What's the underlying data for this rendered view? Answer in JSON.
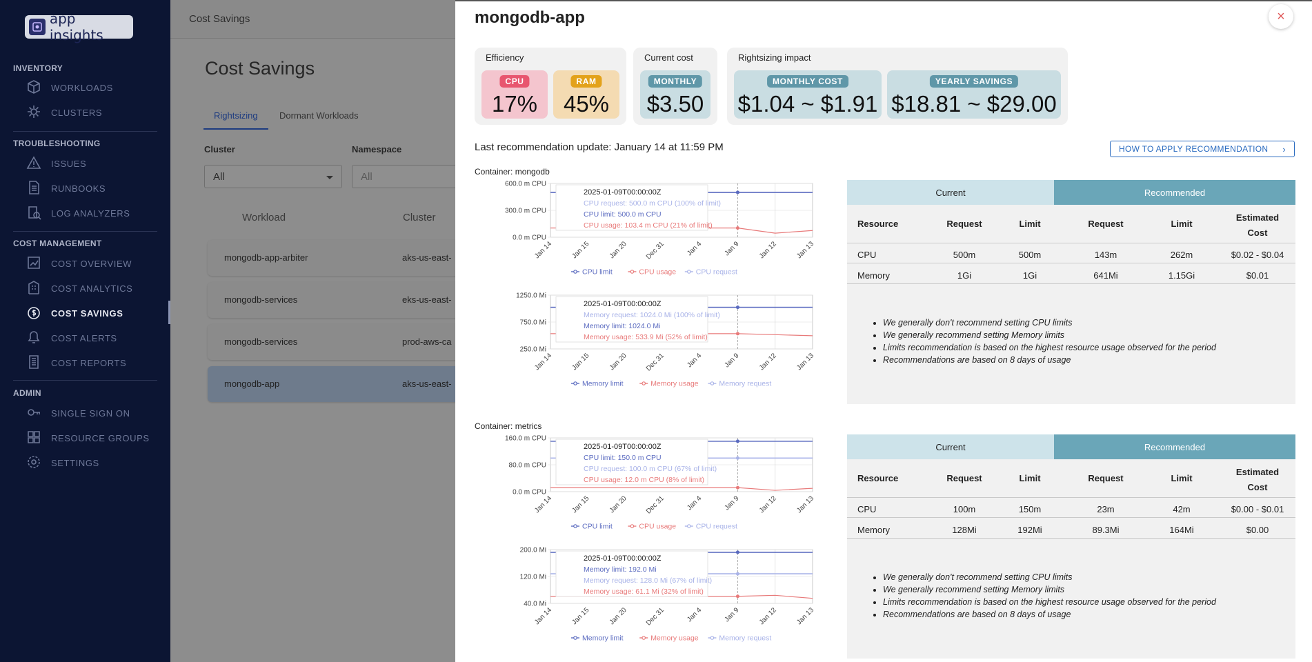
{
  "app": {
    "logo_text": "app insights"
  },
  "sidebar": {
    "sections": [
      {
        "label": "INVENTORY",
        "items": [
          {
            "label": "WORKLOADS",
            "icon": "cube-icon"
          },
          {
            "label": "CLUSTERS",
            "icon": "gear-icon"
          }
        ]
      },
      {
        "label": "TROUBLESHOOTING",
        "items": [
          {
            "label": "ISSUES",
            "icon": "warning-icon"
          },
          {
            "label": "RUNBOOKS",
            "icon": "document-icon"
          },
          {
            "label": "LOG ANALYZERS",
            "icon": "log-icon"
          }
        ]
      },
      {
        "label": "COST MANAGEMENT",
        "items": [
          {
            "label": "COST OVERVIEW",
            "icon": "chart-icon"
          },
          {
            "label": "COST ANALYTICS",
            "icon": "building-icon"
          },
          {
            "label": "COST SAVINGS",
            "icon": "coin-icon",
            "active": true
          },
          {
            "label": "COST ALERTS",
            "icon": "alert-icon"
          },
          {
            "label": "COST REPORTS",
            "icon": "report-icon"
          }
        ]
      },
      {
        "label": "ADMIN",
        "items": [
          {
            "label": "SINGLE SIGN ON",
            "icon": "key-icon"
          },
          {
            "label": "RESOURCE GROUPS",
            "icon": "grid-icon"
          },
          {
            "label": "SETTINGS",
            "icon": "settings-icon"
          }
        ]
      }
    ]
  },
  "main": {
    "topbar_title": "Cost Savings",
    "page_title": "Cost Savings",
    "tabs": [
      {
        "label": "Rightsizing"
      },
      {
        "label": "Dormant Workloads"
      }
    ],
    "filters": [
      {
        "label": "Cluster",
        "value": "All"
      },
      {
        "label": "Namespace",
        "value": "All"
      }
    ],
    "columns": [
      "Workload",
      "Cluster"
    ],
    "rows": [
      {
        "workload": "mongodb-app-arbiter",
        "cluster": "aks-us-east-"
      },
      {
        "workload": "mongodb-services",
        "cluster": "eks-us-east-"
      },
      {
        "workload": "mongodb-services",
        "cluster": "prod-aws-ca"
      },
      {
        "workload": "mongodb-app",
        "cluster": "aks-us-east-"
      }
    ]
  },
  "drawer": {
    "title": "mongodb-app",
    "close_label": "×",
    "efficiency": {
      "label": "Efficiency",
      "cpu_label": "CPU",
      "cpu_value": "17%",
      "ram_label": "RAM",
      "ram_value": "45%"
    },
    "current_cost": {
      "label": "Current cost",
      "badge": "MONTHLY",
      "value": "$3.50"
    },
    "rightsizing": {
      "label": "Rightsizing impact",
      "monthly_badge": "MONTHLY COST",
      "monthly_value": "$1.04 ~ $1.91",
      "yearly_badge": "YEARLY SAVINGS",
      "yearly_value": "$18.81 ~ $29.00"
    },
    "last_update": "Last recommendation update: January 14 at 11:59 PM",
    "howto_label": "HOW TO APPLY RECOMMENDATION",
    "colors": {
      "limit": "#5b6bc0",
      "usage": "#e87a7a",
      "request": "#a9b3e8",
      "cpu_card": "#f4c5ce",
      "cpu_badge": "#e8566f",
      "ram_card": "#f4dbb2",
      "ram_badge": "#e3a21a",
      "teal_card": "#c9dde2",
      "teal_badge": "#5f97a8"
    },
    "table_headers": {
      "current": "Current",
      "recommended": "Recommended",
      "resource": "Resource",
      "request": "Request",
      "limit": "Limit",
      "estimated": "Estimated",
      "cost": "Cost"
    },
    "containers": [
      {
        "label": "Container: mongodb",
        "rows": [
          {
            "resource": "CPU",
            "cur_request": "500m",
            "cur_limit": "500m",
            "rec_request": "143m",
            "rec_limit": "262m",
            "cost": "$0.02 - $0.04"
          },
          {
            "resource": "Memory",
            "cur_request": "1Gi",
            "cur_limit": "1Gi",
            "rec_request": "641Mi",
            "rec_limit": "1.15Gi",
            "cost": "$0.01"
          }
        ],
        "notes": [
          "We generally don't recommend setting CPU limits",
          "We generally recommend setting Memory limits",
          "Limits recommendation is based on the highest resource usage observed for the period",
          "Recommendations are based on 8 days of usage"
        ],
        "charts": [
          {
            "type": "line",
            "x": [
              "Jan 14",
              "Jan 15",
              "Jan 20",
              "Dec 31",
              "Jan 4",
              "Jan 9",
              "Jan 12",
              "Jan 13"
            ],
            "yticks": [
              "600.0 m CPU",
              "300.0 m CPU",
              "0.0 m CPU"
            ],
            "ylim": [
              0,
              600
            ],
            "series": [
              {
                "name": "CPU limit",
                "key": "limit",
                "values": [
                  500,
                  500,
                  500,
                  500,
                  500,
                  500,
                  500,
                  500
                ]
              },
              {
                "name": "CPU usage",
                "key": "usage",
                "values": [
                  103,
                  103,
                  103,
                  103,
                  103,
                  103,
                  45,
                  75
                ]
              },
              {
                "name": "CPU request",
                "key": "request",
                "values": [
                  500,
                  500,
                  500,
                  500,
                  500,
                  500,
                  500,
                  500
                ]
              }
            ],
            "tooltip": {
              "title": "2025-01-09T00:00:00Z",
              "lines": [
                {
                  "key": "request",
                  "text": "CPU request: 500.0 m CPU (100% of limit)"
                },
                {
                  "key": "limit",
                  "text": "CPU limit: 500.0 m CPU"
                },
                {
                  "key": "usage",
                  "text": "CPU usage: 103.4 m CPU (21% of limit)"
                }
              ]
            }
          },
          {
            "type": "line",
            "x": [
              "Jan 14",
              "Jan 15",
              "Jan 20",
              "Dec 31",
              "Jan 4",
              "Jan 9",
              "Jan 12",
              "Jan 13"
            ],
            "yticks": [
              "1250.0 Mi",
              "750.0 Mi",
              "250.0 Mi"
            ],
            "ylim": [
              250,
              1250
            ],
            "series": [
              {
                "name": "Memory limit",
                "key": "limit",
                "values": [
                  1024,
                  1024,
                  1024,
                  1024,
                  1024,
                  1024,
                  1024,
                  1024
                ]
              },
              {
                "name": "Memory usage",
                "key": "usage",
                "values": [
                  534,
                  534,
                  534,
                  534,
                  534,
                  534,
                  515,
                  495
                ]
              },
              {
                "name": "Memory request",
                "key": "request",
                "values": [
                  1024,
                  1024,
                  1024,
                  1024,
                  1024,
                  1024,
                  1024,
                  1024
                ]
              }
            ],
            "tooltip": {
              "title": "2025-01-09T00:00:00Z",
              "lines": [
                {
                  "key": "request",
                  "text": "Memory request: 1024.0 Mi (100% of limit)"
                },
                {
                  "key": "limit",
                  "text": "Memory limit: 1024.0 Mi"
                },
                {
                  "key": "usage",
                  "text": "Memory usage: 533.9 Mi (52% of limit)"
                }
              ]
            }
          }
        ]
      },
      {
        "label": "Container: metrics",
        "rows": [
          {
            "resource": "CPU",
            "cur_request": "100m",
            "cur_limit": "150m",
            "rec_request": "23m",
            "rec_limit": "42m",
            "cost": "$0.00 - $0.01"
          },
          {
            "resource": "Memory",
            "cur_request": "128Mi",
            "cur_limit": "192Mi",
            "rec_request": "89.3Mi",
            "rec_limit": "164Mi",
            "cost": "$0.00"
          }
        ],
        "notes": [
          "We generally don't recommend setting CPU limits",
          "We generally recommend setting Memory limits",
          "Limits recommendation is based on the highest resource usage observed for the period",
          "Recommendations are based on 8 days of usage"
        ],
        "charts": [
          {
            "type": "line",
            "x": [
              "Jan 14",
              "Jan 15",
              "Jan 20",
              "Dec 31",
              "Jan 4",
              "Jan 9",
              "Jan 12",
              "Jan 13"
            ],
            "yticks": [
              "160.0 m CPU",
              "80.0 m CPU",
              "0.0 m CPU"
            ],
            "ylim": [
              0,
              160
            ],
            "series": [
              {
                "name": "CPU limit",
                "key": "limit",
                "values": [
                  150,
                  150,
                  150,
                  150,
                  150,
                  150,
                  150,
                  150
                ]
              },
              {
                "name": "CPU usage",
                "key": "usage",
                "values": [
                  12,
                  12,
                  12,
                  12,
                  12,
                  12,
                  4,
                  10
                ]
              },
              {
                "name": "CPU request",
                "key": "request",
                "values": [
                  100,
                  100,
                  100,
                  100,
                  100,
                  100,
                  100,
                  100
                ]
              }
            ],
            "tooltip": {
              "title": "2025-01-09T00:00:00Z",
              "lines": [
                {
                  "key": "limit",
                  "text": "CPU limit: 150.0 m CPU"
                },
                {
                  "key": "request",
                  "text": "CPU request: 100.0 m CPU (67% of limit)"
                },
                {
                  "key": "usage",
                  "text": "CPU usage: 12.0 m CPU (8% of limit)"
                }
              ]
            }
          },
          {
            "type": "line",
            "x": [
              "Jan 14",
              "Jan 15",
              "Jan 20",
              "Dec 31",
              "Jan 4",
              "Jan 9",
              "Jan 12",
              "Jan 13"
            ],
            "yticks": [
              "200.0 Mi",
              "120.0 Mi",
              "40.0 Mi"
            ],
            "ylim": [
              40,
              200
            ],
            "series": [
              {
                "name": "Memory limit",
                "key": "limit",
                "values": [
                  192,
                  192,
                  192,
                  192,
                  192,
                  192,
                  192,
                  192
                ]
              },
              {
                "name": "Memory usage",
                "key": "usage",
                "values": [
                  61,
                  61,
                  61,
                  61,
                  61,
                  61,
                  64,
                  55
                ]
              },
              {
                "name": "Memory request",
                "key": "request",
                "values": [
                  128,
                  128,
                  128,
                  128,
                  128,
                  128,
                  128,
                  128
                ]
              }
            ],
            "tooltip": {
              "title": "2025-01-09T00:00:00Z",
              "lines": [
                {
                  "key": "limit",
                  "text": "Memory limit: 192.0 Mi"
                },
                {
                  "key": "request",
                  "text": "Memory request: 128.0 Mi (67% of limit)"
                },
                {
                  "key": "usage",
                  "text": "Memory usage: 61.1 Mi (32% of limit)"
                }
              ]
            }
          }
        ]
      }
    ]
  }
}
